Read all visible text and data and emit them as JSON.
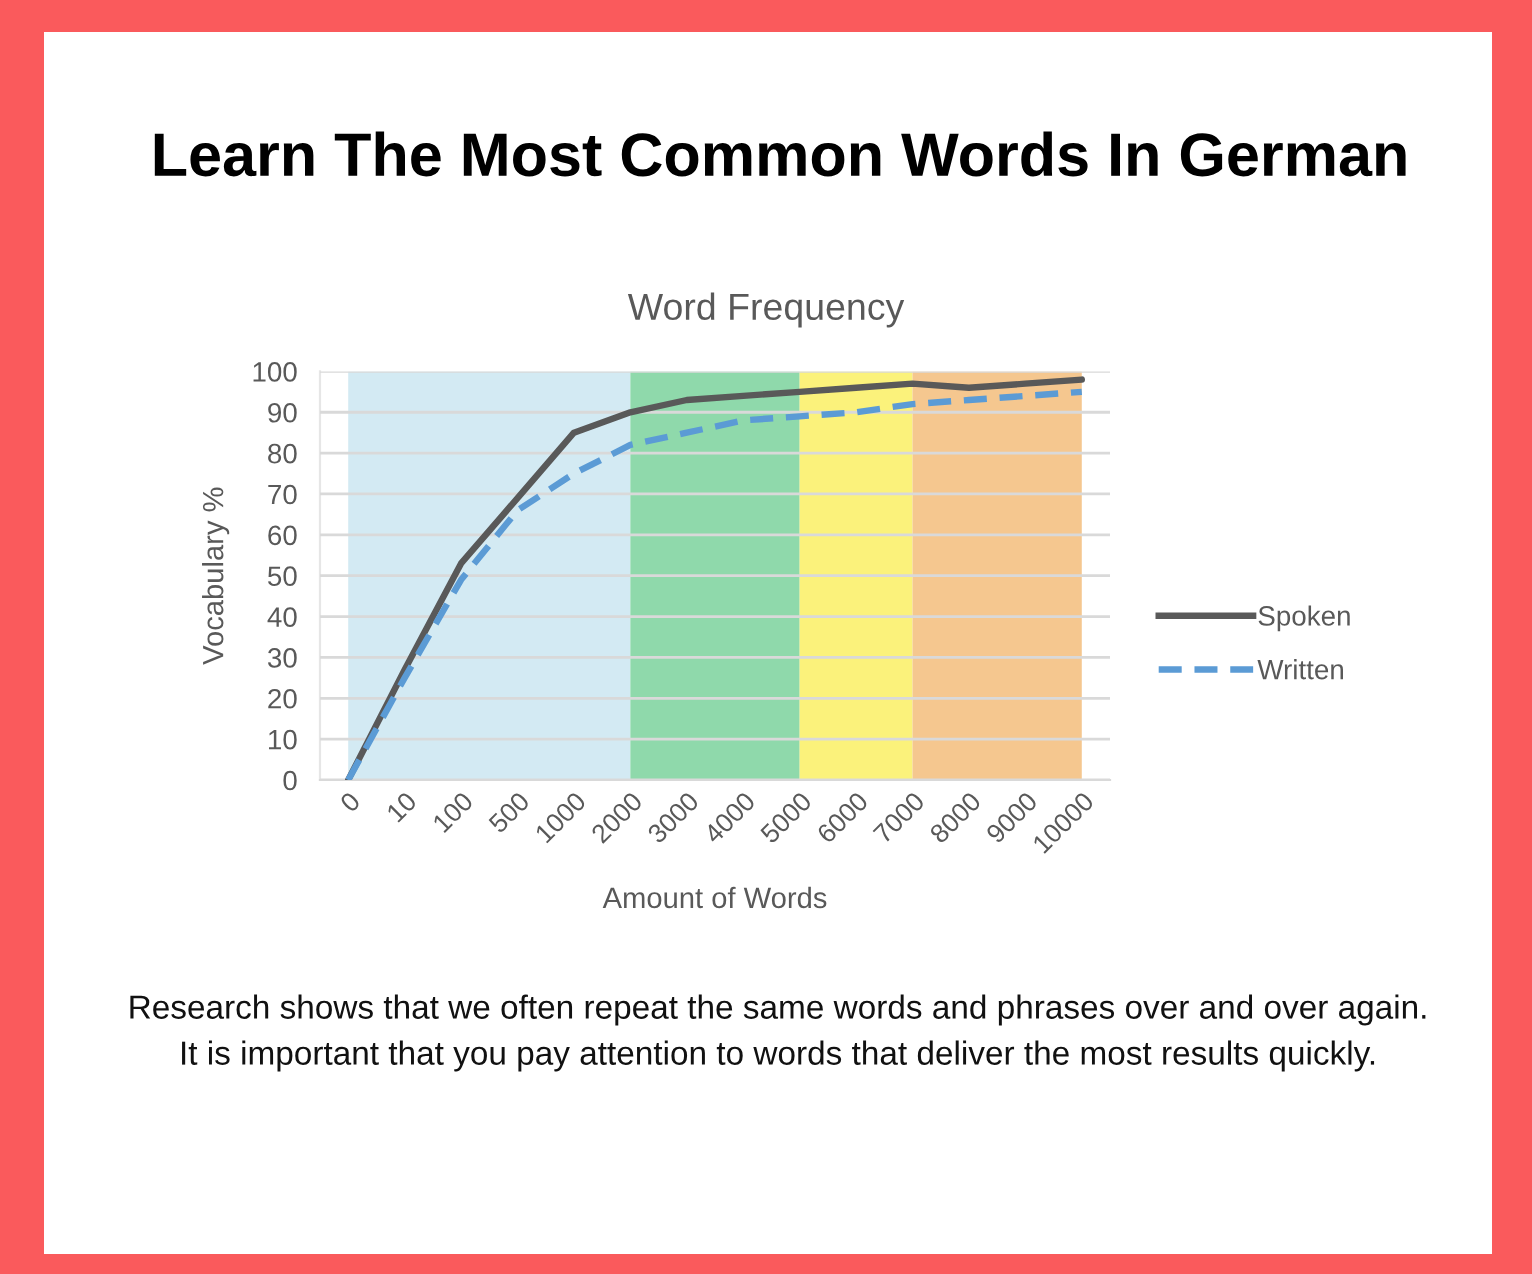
{
  "chart_data": {
    "type": "line",
    "title": "Learn The Most Common Words In German",
    "subtitle": "Word Frequency",
    "xlabel": "Amount of Words",
    "ylabel": "Vocabulary %",
    "annotations": [
      "Research shows that we often repeat the same words and phrases over and over again.",
      "It is important that you pay attention to words that deliver the most results quickly."
    ],
    "categories": [
      "0",
      "10",
      "100",
      "500",
      "1000",
      "2000",
      "3000",
      "4000",
      "5000",
      "6000",
      "7000",
      "8000",
      "9000",
      "10000"
    ],
    "series": [
      {
        "name": "Spoken",
        "color": "#595959",
        "line_style": "solid",
        "values": [
          0,
          27,
          53,
          69,
          85,
          90,
          93,
          94,
          95,
          96,
          97,
          96,
          97,
          98
        ]
      },
      {
        "name": "Written",
        "color": "#5b9bd5",
        "line_style": "dashed",
        "values": [
          0,
          25,
          49,
          66,
          75,
          82,
          85,
          88,
          89,
          90,
          92,
          93,
          94,
          95
        ]
      }
    ],
    "bands": [
      {
        "axis": "x",
        "from": "0",
        "to": "2000",
        "color": "#d3eaf3"
      },
      {
        "axis": "x",
        "from": "2000",
        "to": "5000",
        "color": "#8fd9ab"
      },
      {
        "axis": "x",
        "from": "5000",
        "to": "7000",
        "color": "#fbf27b"
      },
      {
        "axis": "x",
        "from": "7000",
        "to": "10000",
        "color": "#f5c78f"
      }
    ],
    "ylim": [
      0,
      100
    ],
    "yticks": [
      0,
      10,
      20,
      30,
      40,
      50,
      60,
      70,
      80,
      90,
      100
    ],
    "grid": "y",
    "legend": "right"
  }
}
